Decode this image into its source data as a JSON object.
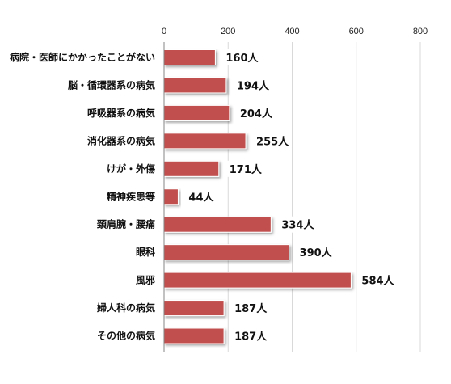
{
  "chart_data": {
    "type": "bar",
    "orientation": "horizontal",
    "categories": [
      "病院・医師にかかったことがない",
      "脳・循環器系の病気",
      "呼吸器系の病気",
      "消化器系の病気",
      "けが・外傷",
      "精神疾患等",
      "頚肩腕・腰痛",
      "眼科",
      "風邪",
      "婦人科の病気",
      "その他の病気"
    ],
    "values": [
      160,
      194,
      204,
      255,
      171,
      44,
      334,
      390,
      584,
      187,
      187
    ],
    "value_labels": [
      "160人",
      "194人",
      "204人",
      "255人",
      "171人",
      "44人",
      "334人",
      "390人",
      "584人",
      "187人",
      "187人"
    ],
    "xlim": [
      0,
      800
    ],
    "x_ticks": [
      "0",
      "200",
      "400",
      "600",
      "800"
    ],
    "x_tick_values": [
      0,
      200,
      400,
      600,
      800
    ],
    "grid": true,
    "legend": "none",
    "bar_color": "#c0504d",
    "title": "",
    "xlabel": "",
    "ylabel": ""
  }
}
